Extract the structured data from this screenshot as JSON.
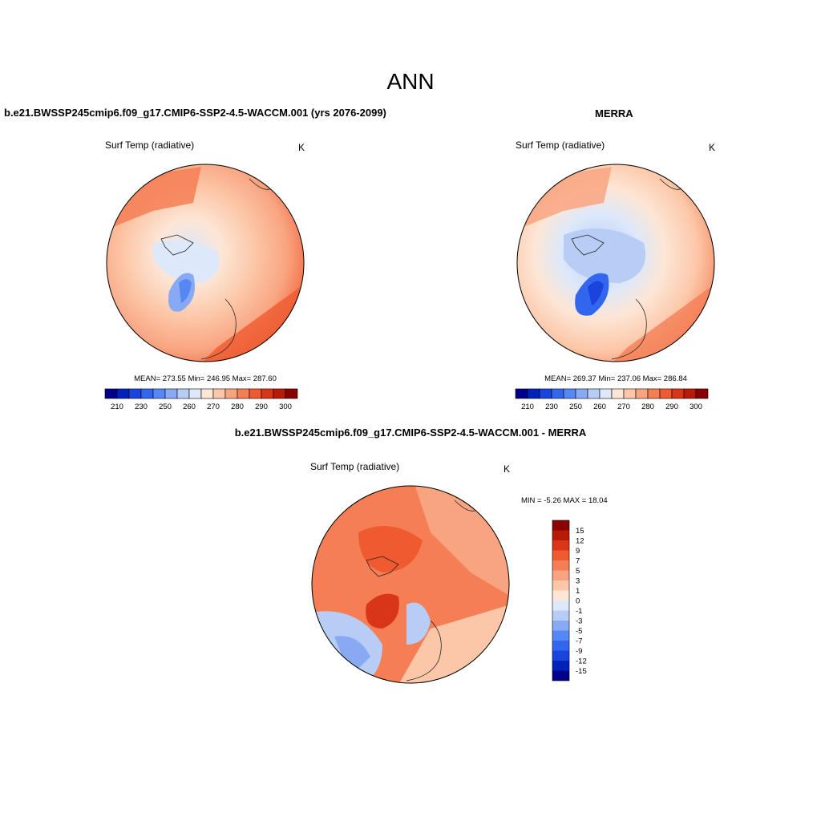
{
  "page": {
    "title": "ANN",
    "accent_colors": {
      "cold": "#0000a0",
      "neutral": "#f7f7f7",
      "warm": "#8b0000"
    }
  },
  "panels": {
    "model": {
      "heading": "b.e21.BWSSP245cmip6.f09_g17.CMIP6-SSP2-4.5-WACCM.001 (yrs 2076-2099)",
      "variable": "Surf Temp (radiative)",
      "units": "K",
      "stats": "MEAN= 273.55  Min= 246.95  Max= 287.60",
      "colorbar_ticks": [
        "210",
        "230",
        "250",
        "260",
        "270",
        "280",
        "290",
        "300"
      ]
    },
    "obs": {
      "heading": "MERRA",
      "variable": "Surf Temp (radiative)",
      "units": "K",
      "stats": "MEAN= 269.37  Min= 237.06  Max= 286.84",
      "colorbar_ticks": [
        "210",
        "230",
        "250",
        "260",
        "270",
        "280",
        "290",
        "300"
      ]
    },
    "diff": {
      "heading": "b.e21.BWSSP245cmip6.f09_g17.CMIP6-SSP2-4.5-WACCM.001 - MERRA",
      "variable": "Surf Temp (radiative)",
      "units": "K",
      "stats": "MIN =  -5.26 MAX =  18.04",
      "colorbar_ticks": [
        "15",
        "12",
        "9",
        "7",
        "5",
        "3",
        "1",
        "0",
        "-1",
        "-3",
        "-5",
        "-7",
        "-9",
        "-12",
        "-15"
      ]
    }
  },
  "colormaps": {
    "abs": [
      "#00008b",
      "#0022bb",
      "#1a44dd",
      "#3366ee",
      "#5588f5",
      "#88aaf5",
      "#b7cdf5",
      "#dde8fa",
      "#fde6d6",
      "#fcc7a8",
      "#f9a480",
      "#f57e55",
      "#ef5a30",
      "#d93518",
      "#b81a08",
      "#8b0000"
    ],
    "diff": [
      "#8b0000",
      "#b81a08",
      "#d93518",
      "#ef5a30",
      "#f57e55",
      "#f9a480",
      "#fcc7a8",
      "#fde6d6",
      "#dde8fa",
      "#b7cdf5",
      "#88aaf5",
      "#5588f5",
      "#3366ee",
      "#1a44dd",
      "#0022bb",
      "#00008b"
    ]
  }
}
